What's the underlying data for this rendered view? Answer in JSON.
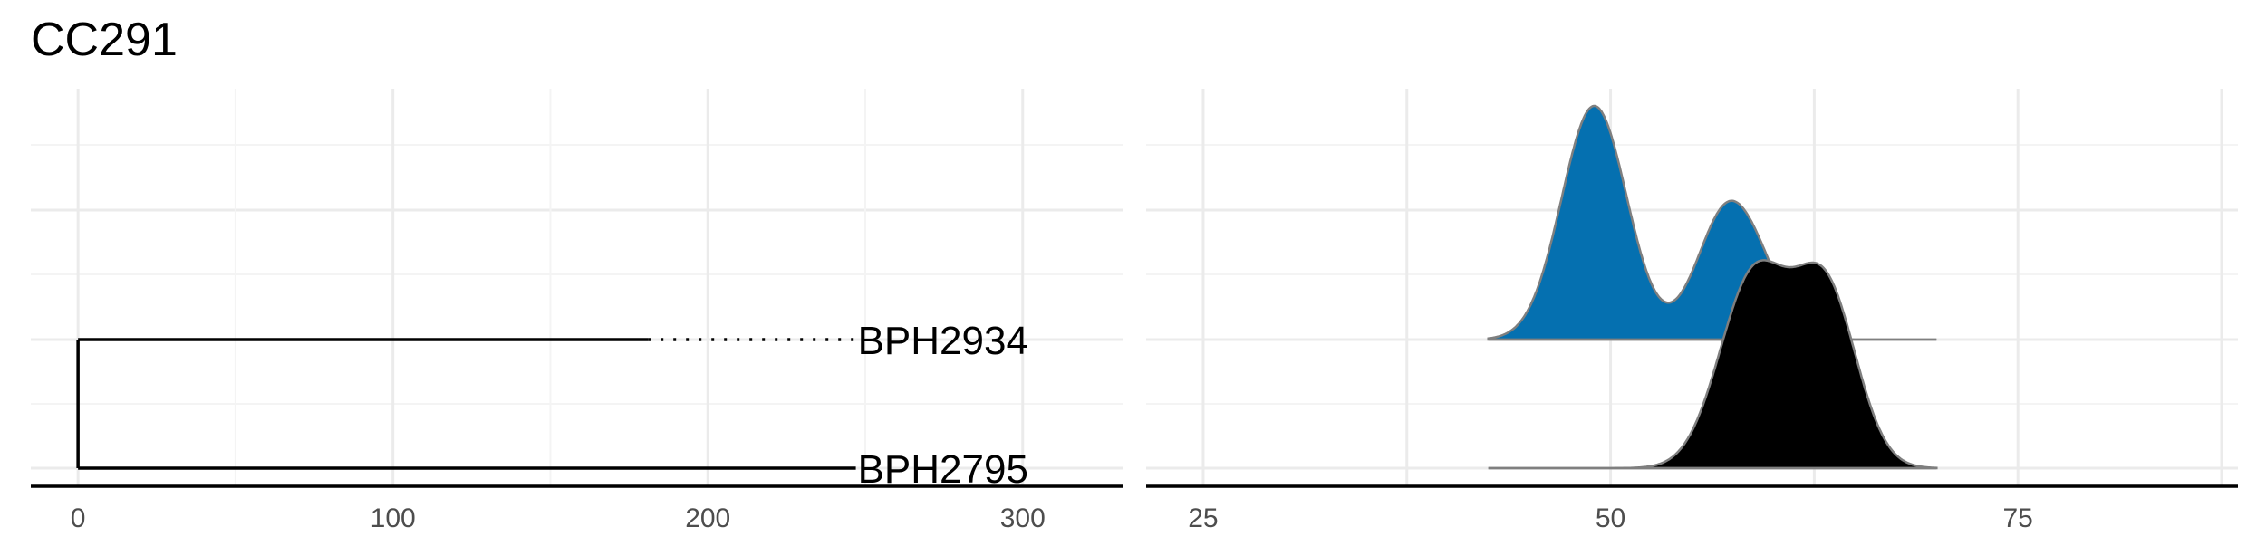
{
  "title": "CC291",
  "chart_data": [
    {
      "type": "tree",
      "tips": [
        {
          "label": "BPH2934",
          "branch_end": 181,
          "label_x": 247
        },
        {
          "label": "BPH2795",
          "branch_end": 247,
          "label_x": 247
        }
      ],
      "xticks": [
        0,
        100,
        200,
        300
      ],
      "xlim": [
        -15,
        332
      ],
      "grid": true
    },
    {
      "type": "ridgeline",
      "rows": [
        "BPH2934",
        "BPH2795"
      ],
      "series": [
        {
          "name": "BPH2934",
          "color": "#0570b0",
          "range": [
            42.5,
            70
          ],
          "components": [
            {
              "mean": 49,
              "sd": 2,
              "weight": 1.0
            },
            {
              "mean": 57.3,
              "sd": 1.9,
              "weight": 0.58
            },
            {
              "mean": 59.8,
              "sd": 1.3,
              "weight": 0.08
            }
          ],
          "peak": 1.0
        },
        {
          "name": "BPH2795",
          "color": "#000000",
          "range": [
            42.5,
            70
          ],
          "components": [
            {
              "mean": 58.8,
              "sd": 2.1,
              "weight": 1.0
            },
            {
              "mean": 63.2,
              "sd": 1.9,
              "weight": 0.92
            }
          ],
          "peak": 0.89
        }
      ],
      "xticks": [
        25,
        50,
        75
      ],
      "xlim": [
        21.5,
        88.5
      ],
      "grid": true
    }
  ]
}
